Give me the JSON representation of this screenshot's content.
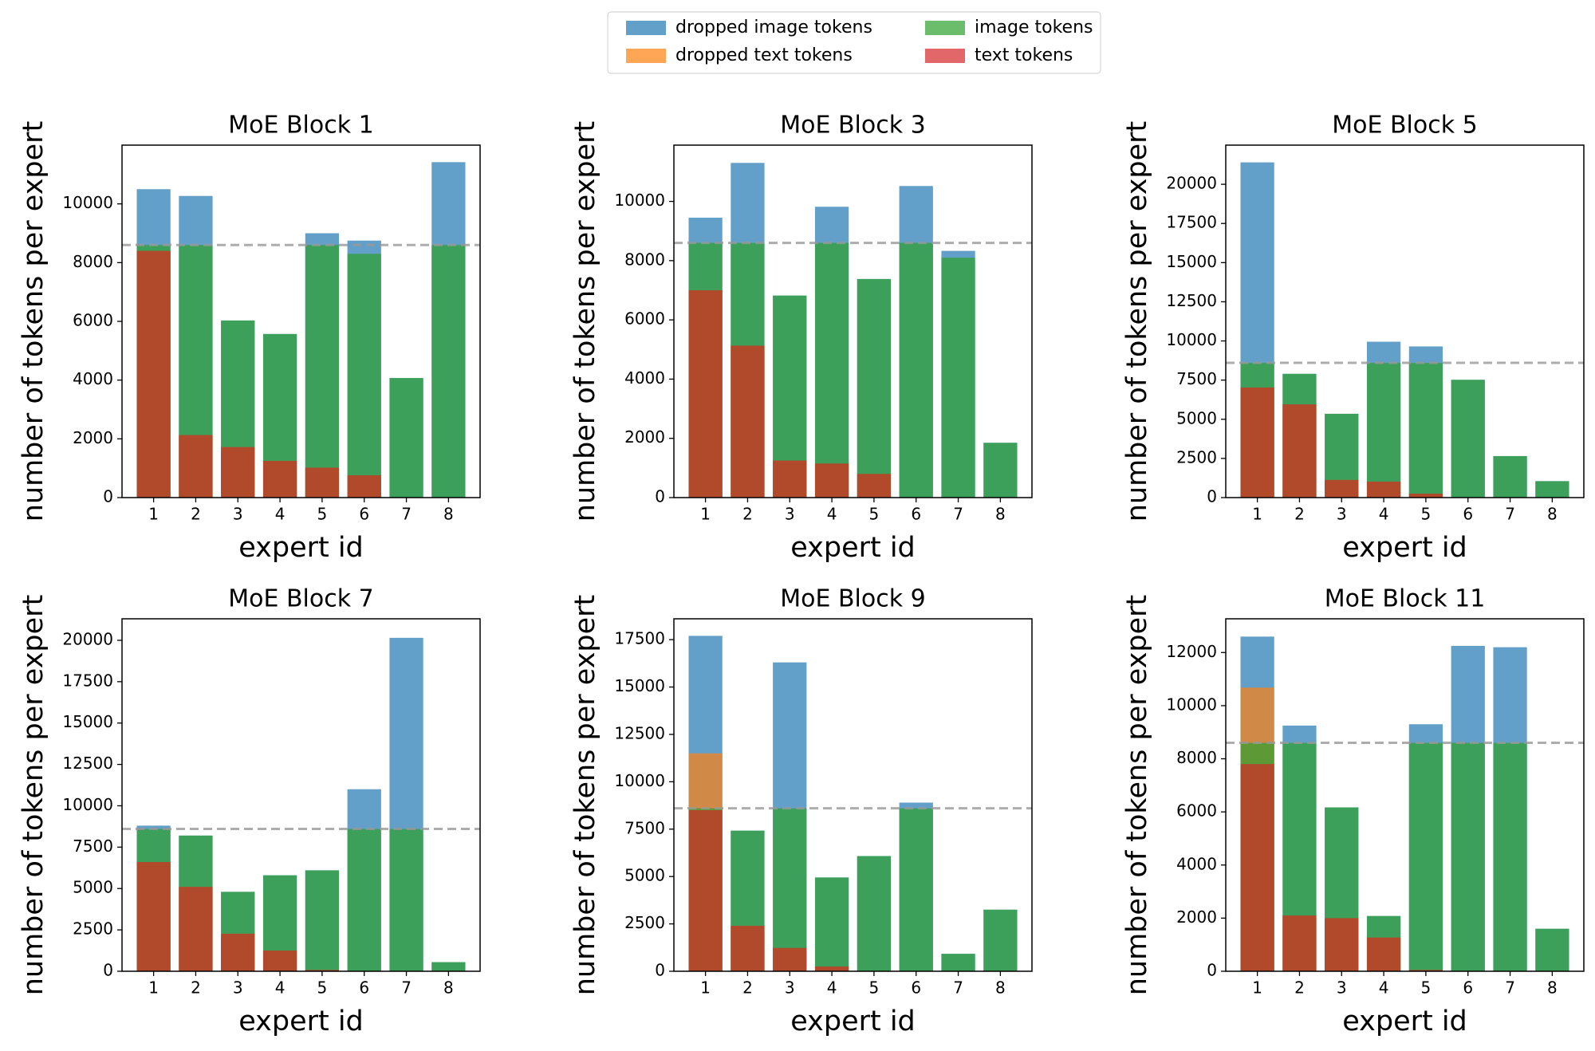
{
  "chart_data": [
    {
      "type": "bar",
      "title": "MoE Block 1",
      "xlabel": "expert id",
      "ylabel": "number of tokens per expert",
      "categories": [
        1,
        2,
        3,
        4,
        5,
        6,
        7,
        8
      ],
      "ylim": [
        0,
        12000
      ],
      "yticks": [
        0,
        2000,
        4000,
        6000,
        8000,
        10000
      ],
      "hline": 8600,
      "series": [
        {
          "name": "dropped image tokens",
          "color": "#1f77b4",
          "values": [
            10500,
            10270,
            6030,
            5570,
            9000,
            8750,
            4070,
            11420
          ]
        },
        {
          "name": "dropped text tokens",
          "color": "#ff7f0e",
          "values": [
            8400,
            2130,
            1720,
            1250,
            1020,
            760,
            0,
            0
          ]
        },
        {
          "name": "image tokens",
          "color": "#2ca02c",
          "values": [
            8600,
            8600,
            6030,
            5570,
            8600,
            8300,
            4070,
            8600
          ]
        },
        {
          "name": "text tokens",
          "color": "#d62728",
          "values": [
            8400,
            2130,
            1720,
            1250,
            1020,
            760,
            0,
            0
          ]
        }
      ]
    },
    {
      "type": "bar",
      "title": "MoE Block 3",
      "xlabel": "expert id",
      "ylabel": "number of tokens per expert",
      "categories": [
        1,
        2,
        3,
        4,
        5,
        6,
        7,
        8
      ],
      "ylim": [
        0,
        11900
      ],
      "yticks": [
        0,
        2000,
        4000,
        6000,
        8000,
        10000
      ],
      "hline": 8600,
      "series": [
        {
          "name": "dropped image tokens",
          "color": "#1f77b4",
          "values": [
            9450,
            11300,
            6820,
            9820,
            7380,
            10520,
            8330,
            1850
          ]
        },
        {
          "name": "dropped text tokens",
          "color": "#ff7f0e",
          "values": [
            7000,
            5130,
            1250,
            1150,
            800,
            0,
            0,
            0
          ]
        },
        {
          "name": "image tokens",
          "color": "#2ca02c",
          "values": [
            8600,
            8600,
            6820,
            8600,
            7380,
            8600,
            8100,
            1850
          ]
        },
        {
          "name": "text tokens",
          "color": "#d62728",
          "values": [
            7000,
            5130,
            1250,
            1150,
            800,
            0,
            0,
            0
          ]
        }
      ]
    },
    {
      "type": "bar",
      "title": "MoE Block 5",
      "xlabel": "expert id",
      "ylabel": "number of tokens per expert",
      "categories": [
        1,
        2,
        3,
        4,
        5,
        6,
        7,
        8
      ],
      "ylim": [
        0,
        22500
      ],
      "yticks": [
        0,
        2500,
        5000,
        7500,
        10000,
        12500,
        15000,
        17500,
        20000
      ],
      "hline": 8600,
      "series": [
        {
          "name": "dropped image tokens",
          "color": "#1f77b4",
          "values": [
            21400,
            7900,
            5350,
            9950,
            9650,
            7520,
            2650,
            1050
          ]
        },
        {
          "name": "dropped text tokens",
          "color": "#ff7f0e",
          "values": [
            7030,
            5950,
            1130,
            1020,
            250,
            0,
            0,
            0
          ]
        },
        {
          "name": "image tokens",
          "color": "#2ca02c",
          "values": [
            8600,
            7900,
            5350,
            8600,
            8600,
            7520,
            2650,
            1050
          ]
        },
        {
          "name": "text tokens",
          "color": "#d62728",
          "values": [
            7030,
            5950,
            1130,
            1020,
            250,
            0,
            0,
            0
          ]
        }
      ]
    },
    {
      "type": "bar",
      "title": "MoE Block 7",
      "xlabel": "expert id",
      "ylabel": "number of tokens per expert",
      "categories": [
        1,
        2,
        3,
        4,
        5,
        6,
        7,
        8
      ],
      "ylim": [
        0,
        21300
      ],
      "yticks": [
        0,
        2500,
        5000,
        7500,
        10000,
        12500,
        15000,
        17500,
        20000
      ],
      "hline": 8600,
      "series": [
        {
          "name": "dropped image tokens",
          "color": "#1f77b4",
          "values": [
            8800,
            8200,
            4800,
            5800,
            6100,
            11000,
            20150,
            550
          ]
        },
        {
          "name": "dropped text tokens",
          "color": "#ff7f0e",
          "values": [
            6600,
            5100,
            2270,
            1250,
            80,
            0,
            0,
            0
          ]
        },
        {
          "name": "image tokens",
          "color": "#2ca02c",
          "values": [
            8600,
            8200,
            4800,
            5800,
            6100,
            8600,
            8600,
            550
          ]
        },
        {
          "name": "text tokens",
          "color": "#d62728",
          "values": [
            6600,
            5100,
            2270,
            1250,
            80,
            0,
            0,
            0
          ]
        }
      ]
    },
    {
      "type": "bar",
      "title": "MoE Block 9",
      "xlabel": "expert id",
      "ylabel": "number of tokens per expert",
      "categories": [
        1,
        2,
        3,
        4,
        5,
        6,
        7,
        8
      ],
      "ylim": [
        0,
        18600
      ],
      "yticks": [
        0,
        2500,
        5000,
        7500,
        10000,
        12500,
        15000,
        17500
      ],
      "hline": 8600,
      "series": [
        {
          "name": "dropped image tokens",
          "color": "#1f77b4",
          "values": [
            17700,
            7420,
            16300,
            4950,
            6080,
            8900,
            920,
            3250
          ]
        },
        {
          "name": "dropped text tokens",
          "color": "#ff7f0e",
          "values": [
            11500,
            2400,
            1230,
            250,
            0,
            0,
            0,
            0
          ]
        },
        {
          "name": "image tokens",
          "color": "#2ca02c",
          "values": [
            8600,
            7420,
            8600,
            4950,
            6080,
            8600,
            920,
            3250
          ]
        },
        {
          "name": "text tokens",
          "color": "#d62728",
          "values": [
            8500,
            2400,
            1230,
            250,
            0,
            0,
            0,
            0
          ]
        }
      ]
    },
    {
      "type": "bar",
      "title": "MoE Block 11",
      "xlabel": "expert id",
      "ylabel": "number of tokens per expert",
      "categories": [
        1,
        2,
        3,
        4,
        5,
        6,
        7,
        8
      ],
      "ylim": [
        0,
        13270
      ],
      "yticks": [
        0,
        2000,
        4000,
        6000,
        8000,
        10000,
        12000
      ],
      "hline": 8600,
      "series": [
        {
          "name": "dropped image tokens",
          "color": "#1f77b4",
          "values": [
            12600,
            9250,
            6170,
            2080,
            9300,
            12250,
            12200,
            1600
          ]
        },
        {
          "name": "dropped text tokens",
          "color": "#ff7f0e",
          "values": [
            10680,
            2100,
            2000,
            1270,
            50,
            0,
            0,
            0
          ]
        },
        {
          "name": "image tokens",
          "color": "#2ca02c",
          "values": [
            8600,
            8600,
            6170,
            2080,
            8600,
            8600,
            8600,
            1600
          ]
        },
        {
          "name": "text tokens",
          "color": "#d62728",
          "values": [
            7800,
            2100,
            2000,
            1270,
            50,
            0,
            0,
            0
          ]
        }
      ]
    }
  ]
}
